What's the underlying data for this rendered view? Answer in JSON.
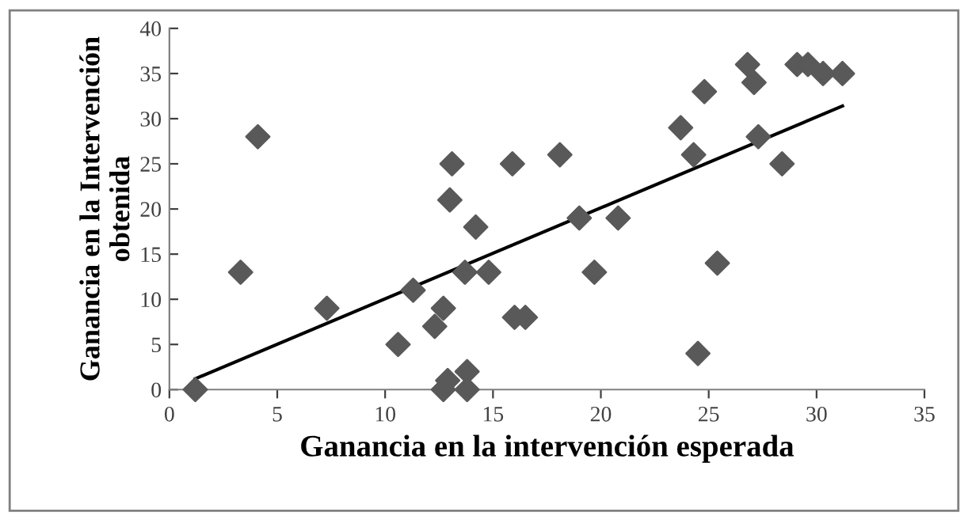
{
  "chart_data": {
    "type": "scatter",
    "xlabel": "Ganancia en la intervención esperada",
    "ylabel": "Ganancia en la Intervención\nobtenida",
    "xlim": [
      0,
      35
    ],
    "ylim": [
      0,
      40
    ],
    "xticks": [
      0,
      5,
      10,
      15,
      20,
      25,
      30,
      35
    ],
    "yticks": [
      0,
      5,
      10,
      15,
      20,
      25,
      30,
      35,
      40
    ],
    "grid": false,
    "legend": false,
    "series": [
      {
        "marker": "diamond",
        "color": "#595959",
        "x": [
          1.2,
          3.3,
          4.1,
          7.3,
          10.6,
          11.3,
          12.3,
          12.7,
          12.7,
          12.9,
          13.0,
          13.1,
          13.7,
          13.8,
          13.8,
          14.2,
          14.8,
          15.9,
          16.0,
          16.5,
          18.1,
          19.0,
          19.7,
          20.8,
          23.7,
          24.3,
          24.5,
          24.8,
          25.4,
          26.8,
          27.1,
          27.3,
          28.4,
          29.1,
          29.6,
          30.3,
          31.2
        ],
        "values": [
          0,
          13,
          28,
          9,
          5,
          11,
          7,
          9,
          0,
          1,
          21,
          25,
          13,
          2,
          0,
          18,
          13,
          25,
          8,
          8,
          26,
          19,
          13,
          19,
          29,
          26,
          4,
          33,
          14,
          36,
          34,
          28,
          25,
          36,
          36,
          35,
          35
        ]
      },
      {
        "type": "line",
        "marker": "none",
        "color": "#000000",
        "x": [
          1.2,
          31.2
        ],
        "values": [
          1.2,
          31.4
        ]
      }
    ]
  }
}
